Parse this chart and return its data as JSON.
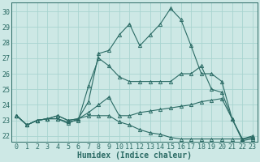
{
  "xlabel": "Humidex (Indice chaleur)",
  "bg_color": "#cde8e5",
  "grid_color": "#a8d4d0",
  "line_color": "#2b6b65",
  "xlim": [
    -0.5,
    23.5
  ],
  "ylim": [
    21.6,
    30.6
  ],
  "yticks": [
    22,
    23,
    24,
    25,
    26,
    27,
    28,
    29,
    30
  ],
  "xticks": [
    0,
    1,
    2,
    3,
    4,
    5,
    6,
    7,
    8,
    9,
    10,
    11,
    12,
    13,
    14,
    15,
    16,
    17,
    18,
    19,
    20,
    21,
    22,
    23
  ],
  "series": [
    [
      23.3,
      22.7,
      23.0,
      23.1,
      23.1,
      22.8,
      23.1,
      24.2,
      27.3,
      27.5,
      28.5,
      29.2,
      27.8,
      28.5,
      29.2,
      30.2,
      29.5,
      27.8,
      26.0,
      26.0,
      25.5,
      23.1,
      21.7,
      21.8
    ],
    [
      23.3,
      22.7,
      23.0,
      23.1,
      23.1,
      22.9,
      23.0,
      25.2,
      27.0,
      26.5,
      25.8,
      25.5,
      25.5,
      25.5,
      25.5,
      25.5,
      26.0,
      26.0,
      26.5,
      25.0,
      24.8,
      23.1,
      21.8,
      21.9
    ],
    [
      23.3,
      22.7,
      23.0,
      23.1,
      23.3,
      23.0,
      23.1,
      23.5,
      24.0,
      24.5,
      23.3,
      23.3,
      23.5,
      23.6,
      23.7,
      23.8,
      23.9,
      24.0,
      24.2,
      24.3,
      24.4,
      23.1,
      21.8,
      22.0
    ],
    [
      23.3,
      22.7,
      23.0,
      23.1,
      23.3,
      23.0,
      23.1,
      23.3,
      23.3,
      23.3,
      22.9,
      22.7,
      22.4,
      22.2,
      22.1,
      21.9,
      21.8,
      21.8,
      21.8,
      21.8,
      21.8,
      21.8,
      21.8,
      21.9
    ]
  ],
  "marker": "^",
  "marker_size": 3.0,
  "tick_fontsize": 6.0,
  "label_fontsize": 7.0,
  "linewidth": 0.8
}
